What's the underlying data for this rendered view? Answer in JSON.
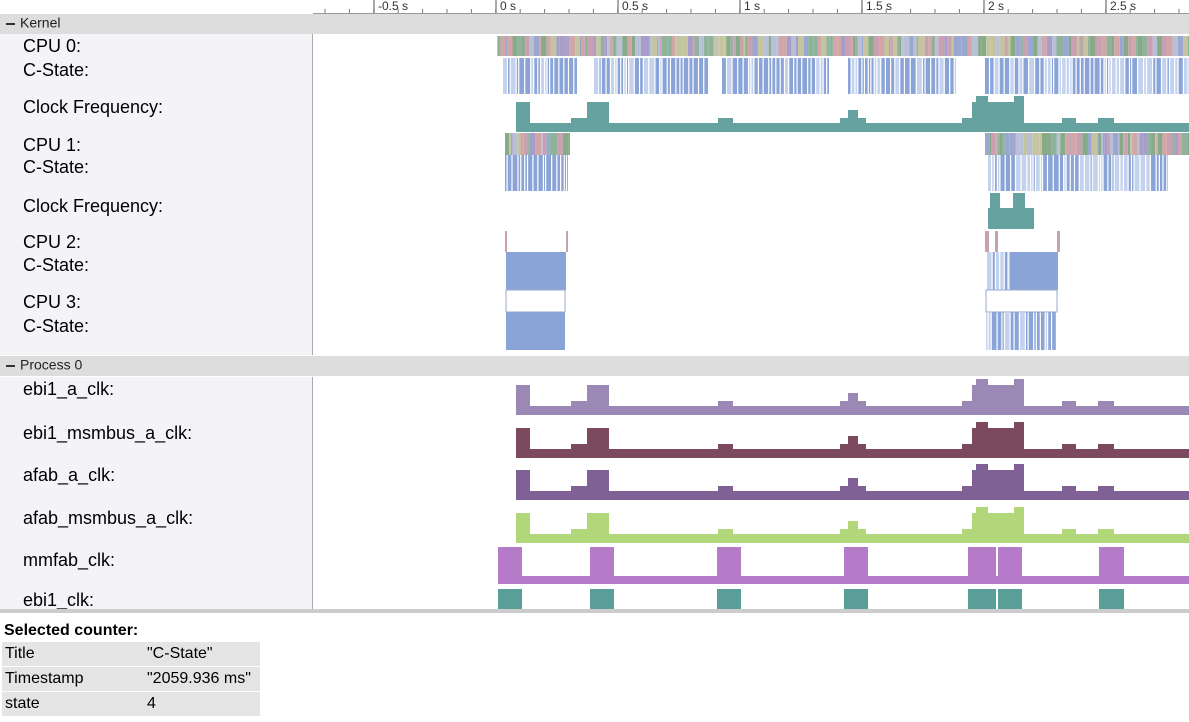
{
  "ruler": {
    "ticks": [
      "-0.5 s",
      "0 s",
      "0.5 s",
      "1 s",
      "1.5 s",
      "2 s",
      "2.5 s"
    ]
  },
  "sections": [
    {
      "title": "Kernel",
      "tracks": [
        "CPU 0:",
        "C-State:",
        "Clock Frequency:",
        "CPU 1:",
        "C-State:",
        "Clock Frequency:",
        "CPU 2:",
        "C-State:",
        "CPU 3:",
        "C-State:"
      ]
    },
    {
      "title": "Process 0",
      "tracks": [
        "ebi1_a_clk:",
        "ebi1_msmbus_a_clk:",
        "afab_a_clk:",
        "afab_msmbus_a_clk:",
        "mmfab_clk:",
        "ebi1_clk:"
      ]
    }
  ],
  "selected_counter": {
    "heading": "Selected counter:",
    "rows": [
      [
        "Title",
        "\"C-State\""
      ],
      [
        "Timestamp",
        "\"2059.936 ms\""
      ],
      [
        "state",
        4
      ]
    ]
  }
}
